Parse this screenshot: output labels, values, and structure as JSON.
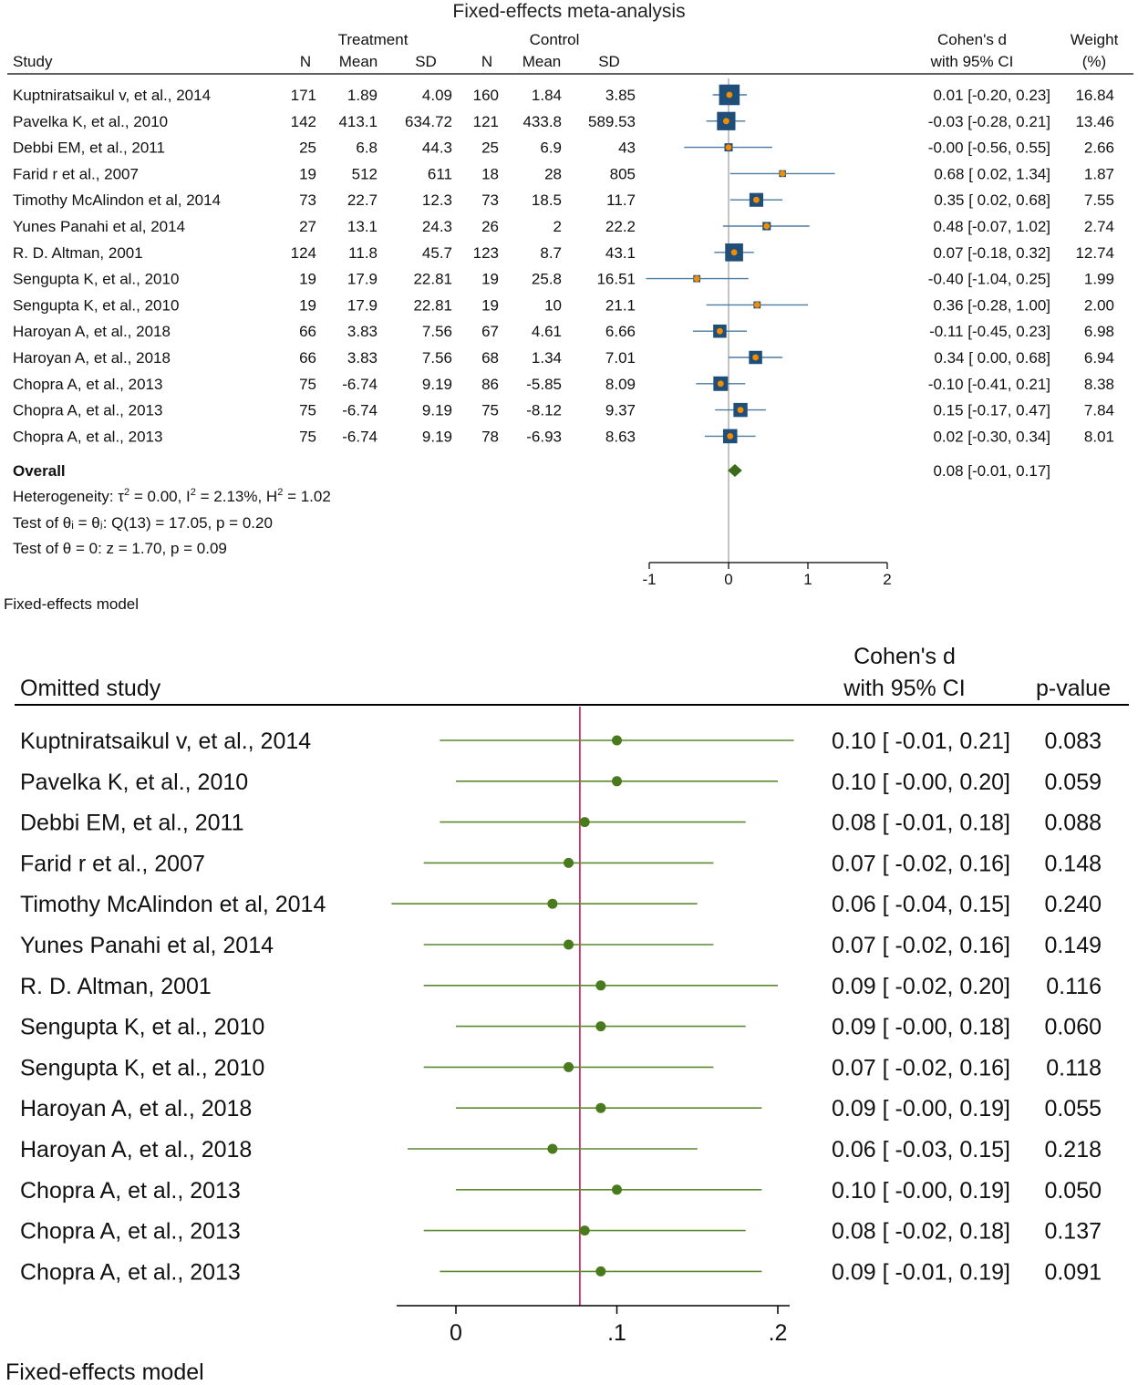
{
  "chart_data": [
    {
      "type": "forest",
      "title": "Fixed-effects meta-analysis",
      "group_headers": {
        "treatment": "Treatment",
        "control": "Control"
      },
      "columns": {
        "study": "Study",
        "n_t": "N",
        "mean_t": "Mean",
        "sd_t": "SD",
        "n_c": "N",
        "mean_c": "Mean",
        "sd_c": "SD",
        "es_line1": "Cohen's d",
        "es_line2": "with 95% CI",
        "wt_line1": "Weight",
        "wt_line2": "(%)"
      },
      "rows": [
        {
          "study": "Kuptniratsaikul v, et al., 2014",
          "n_t": "171",
          "mean_t": "1.89",
          "sd_t": "4.09",
          "n_c": "160",
          "mean_c": "1.84",
          "sd_c": "3.85",
          "d": 0.01,
          "lo": -0.2,
          "hi": 0.23,
          "ci_text": "0.01 [-0.20,  0.23]",
          "weight": 16.84,
          "weight_text": "16.84"
        },
        {
          "study": "Pavelka K, et al., 2010",
          "n_t": "142",
          "mean_t": "413.1",
          "sd_t": "634.72",
          "n_c": "121",
          "mean_c": "433.8",
          "sd_c": "589.53",
          "d": -0.03,
          "lo": -0.28,
          "hi": 0.21,
          "ci_text": "-0.03 [-0.28,  0.21]",
          "weight": 13.46,
          "weight_text": "13.46"
        },
        {
          "study": "Debbi EM, et al., 2011",
          "n_t": "25",
          "mean_t": "6.8",
          "sd_t": "44.3",
          "n_c": "25",
          "mean_c": "6.9",
          "sd_c": "43",
          "d": 0.0,
          "lo": -0.56,
          "hi": 0.55,
          "ci_text": "-0.00 [-0.56,  0.55]",
          "weight": 2.66,
          "weight_text": "2.66"
        },
        {
          "study": "Farid r et al., 2007",
          "n_t": "19",
          "mean_t": "512",
          "sd_t": "611",
          "n_c": "18",
          "mean_c": "28",
          "sd_c": "805",
          "d": 0.68,
          "lo": 0.02,
          "hi": 1.34,
          "ci_text": "0.68 [ 0.02,  1.34]",
          "weight": 1.87,
          "weight_text": "1.87"
        },
        {
          "study": "Timothy McAlindon et al, 2014",
          "n_t": "73",
          "mean_t": "22.7",
          "sd_t": "12.3",
          "n_c": "73",
          "mean_c": "18.5",
          "sd_c": "11.7",
          "d": 0.35,
          "lo": 0.02,
          "hi": 0.68,
          "ci_text": "0.35 [ 0.02,  0.68]",
          "weight": 7.55,
          "weight_text": "7.55"
        },
        {
          "study": "Yunes Panahi et al, 2014",
          "n_t": "27",
          "mean_t": "13.1",
          "sd_t": "24.3",
          "n_c": "26",
          "mean_c": "2",
          "sd_c": "22.2",
          "d": 0.48,
          "lo": -0.07,
          "hi": 1.02,
          "ci_text": "0.48 [-0.07,  1.02]",
          "weight": 2.74,
          "weight_text": "2.74"
        },
        {
          "study": "R. D. Altman, 2001",
          "n_t": "124",
          "mean_t": "11.8",
          "sd_t": "45.7",
          "n_c": "123",
          "mean_c": "8.7",
          "sd_c": "43.1",
          "d": 0.07,
          "lo": -0.18,
          "hi": 0.32,
          "ci_text": "0.07 [-0.18,  0.32]",
          "weight": 12.74,
          "weight_text": "12.74"
        },
        {
          "study": "Sengupta K, et al., 2010",
          "n_t": "19",
          "mean_t": "17.9",
          "sd_t": "22.81",
          "n_c": "19",
          "mean_c": "25.8",
          "sd_c": "16.51",
          "d": -0.4,
          "lo": -1.04,
          "hi": 0.25,
          "ci_text": "-0.40 [-1.04,  0.25]",
          "weight": 1.99,
          "weight_text": "1.99"
        },
        {
          "study": "Sengupta K, et al., 2010",
          "n_t": "19",
          "mean_t": "17.9",
          "sd_t": "22.81",
          "n_c": "19",
          "mean_c": "10",
          "sd_c": "21.1",
          "d": 0.36,
          "lo": -0.28,
          "hi": 1.0,
          "ci_text": "0.36 [-0.28,  1.00]",
          "weight": 2.0,
          "weight_text": "2.00"
        },
        {
          "study": "Haroyan A, et al., 2018",
          "n_t": "66",
          "mean_t": "3.83",
          "sd_t": "7.56",
          "n_c": "67",
          "mean_c": "4.61",
          "sd_c": "6.66",
          "d": -0.11,
          "lo": -0.45,
          "hi": 0.23,
          "ci_text": "-0.11 [-0.45,  0.23]",
          "weight": 6.98,
          "weight_text": "6.98"
        },
        {
          "study": "Haroyan A, et al., 2018",
          "n_t": "66",
          "mean_t": "3.83",
          "sd_t": "7.56",
          "n_c": "68",
          "mean_c": "1.34",
          "sd_c": "7.01",
          "d": 0.34,
          "lo": 0.0,
          "hi": 0.68,
          "ci_text": "0.34 [ 0.00,  0.68]",
          "weight": 6.94,
          "weight_text": "6.94"
        },
        {
          "study": "Chopra A, et al., 2013",
          "n_t": "75",
          "mean_t": "-6.74",
          "sd_t": "9.19",
          "n_c": "86",
          "mean_c": "-5.85",
          "sd_c": "8.09",
          "d": -0.1,
          "lo": -0.41,
          "hi": 0.21,
          "ci_text": "-0.10 [-0.41,  0.21]",
          "weight": 8.38,
          "weight_text": "8.38"
        },
        {
          "study": "Chopra A, et al., 2013",
          "n_t": "75",
          "mean_t": "-6.74",
          "sd_t": "9.19",
          "n_c": "75",
          "mean_c": "-8.12",
          "sd_c": "9.37",
          "d": 0.15,
          "lo": -0.17,
          "hi": 0.47,
          "ci_text": "0.15 [-0.17,  0.47]",
          "weight": 7.84,
          "weight_text": "7.84"
        },
        {
          "study": "Chopra A, et al., 2013",
          "n_t": "75",
          "mean_t": "-6.74",
          "sd_t": "9.19",
          "n_c": "78",
          "mean_c": "-6.93",
          "sd_c": "8.63",
          "d": 0.02,
          "lo": -0.3,
          "hi": 0.34,
          "ci_text": "0.02 [-0.30,  0.34]",
          "weight": 8.01,
          "weight_text": "8.01"
        }
      ],
      "overall": {
        "label": "Overall",
        "d": 0.08,
        "lo": -0.01,
        "hi": 0.17,
        "ci_text": "0.08 [-0.01,  0.17]"
      },
      "heterogeneity": {
        "prefix": "Heterogeneity: τ",
        "tau_sup": "2",
        "mid1": " = 0.00, I",
        "i_sup": "2",
        "mid2": " = 2.13%, H",
        "h_sup": "2",
        "suffix": " = 1.02"
      },
      "test_q": "Test of θᵢ = θⱼ: Q(13) = 17.05, p = 0.20",
      "test_z": "Test of θ = 0: z = 1.70, p = 0.09",
      "xlim": [
        -1,
        2
      ],
      "xticks": [
        -1,
        0,
        1,
        2
      ],
      "tick_labels": [
        "-1",
        "0",
        "1",
        "2"
      ],
      "note": "Fixed-effects model",
      "colors": {
        "square": "#1f4e79",
        "point": "#f28c00",
        "ci_line": "#4a7aa0",
        "diamond": "#3a6b1a",
        "zero_line": "#b0b0b0"
      }
    },
    {
      "type": "leave-one-out",
      "columns": {
        "study": "Omitted study",
        "es_line1": "Cohen's d",
        "es_line2": "with 95% CI",
        "p": "p-value"
      },
      "rows": [
        {
          "study": "Kuptniratsaikul v, et al., 2014",
          "d": 0.1,
          "lo": -0.01,
          "hi": 0.21,
          "ci_text": "0.10 [ -0.01,  0.21]",
          "p": "0.083"
        },
        {
          "study": "Pavelka K, et al., 2010",
          "d": 0.1,
          "lo": -0.0,
          "hi": 0.2,
          "ci_text": "0.10 [ -0.00,  0.20]",
          "p": "0.059"
        },
        {
          "study": "Debbi EM, et al., 2011",
          "d": 0.08,
          "lo": -0.01,
          "hi": 0.18,
          "ci_text": "0.08 [ -0.01,  0.18]",
          "p": "0.088"
        },
        {
          "study": "Farid r et al., 2007",
          "d": 0.07,
          "lo": -0.02,
          "hi": 0.16,
          "ci_text": "0.07 [ -0.02,  0.16]",
          "p": "0.148"
        },
        {
          "study": "Timothy McAlindon et al, 2014",
          "d": 0.06,
          "lo": -0.04,
          "hi": 0.15,
          "ci_text": "0.06 [ -0.04,  0.15]",
          "p": "0.240"
        },
        {
          "study": "Yunes Panahi et al, 2014",
          "d": 0.07,
          "lo": -0.02,
          "hi": 0.16,
          "ci_text": "0.07 [ -0.02,  0.16]",
          "p": "0.149"
        },
        {
          "study": "R. D. Altman, 2001",
          "d": 0.09,
          "lo": -0.02,
          "hi": 0.2,
          "ci_text": "0.09 [ -0.02,  0.20]",
          "p": "0.116"
        },
        {
          "study": "Sengupta K, et al., 2010",
          "d": 0.09,
          "lo": -0.0,
          "hi": 0.18,
          "ci_text": "0.09 [ -0.00,  0.18]",
          "p": "0.060"
        },
        {
          "study": "Sengupta K, et al., 2010",
          "d": 0.07,
          "lo": -0.02,
          "hi": 0.16,
          "ci_text": "0.07 [ -0.02,  0.16]",
          "p": "0.118"
        },
        {
          "study": "Haroyan A, et al., 2018",
          "d": 0.09,
          "lo": -0.0,
          "hi": 0.19,
          "ci_text": "0.09 [ -0.00,  0.19]",
          "p": "0.055"
        },
        {
          "study": "Haroyan A, et al., 2018",
          "d": 0.06,
          "lo": -0.03,
          "hi": 0.15,
          "ci_text": "0.06 [ -0.03,  0.15]",
          "p": "0.218"
        },
        {
          "study": "Chopra A, et al., 2013",
          "d": 0.1,
          "lo": -0.0,
          "hi": 0.19,
          "ci_text": "0.10 [ -0.00,  0.19]",
          "p": "0.050"
        },
        {
          "study": "Chopra A, et al., 2013",
          "d": 0.08,
          "lo": -0.02,
          "hi": 0.18,
          "ci_text": "0.08 [ -0.02,  0.18]",
          "p": "0.137"
        },
        {
          "study": "Chopra A, et al., 2013",
          "d": 0.09,
          "lo": -0.01,
          "hi": 0.19,
          "ci_text": "0.09 [ -0.01,  0.19]",
          "p": "0.091"
        }
      ],
      "reference_line": 0.077,
      "xlim": [
        -0.036,
        0.206
      ],
      "xticks": [
        0,
        0.1,
        0.2
      ],
      "tick_labels": [
        "0",
        ".1",
        ".2"
      ],
      "note": "Fixed-effects model",
      "colors": {
        "point": "#4a7a1e",
        "ci_line": "#5a8a2e",
        "reference_line": "#cc3366"
      }
    }
  ]
}
